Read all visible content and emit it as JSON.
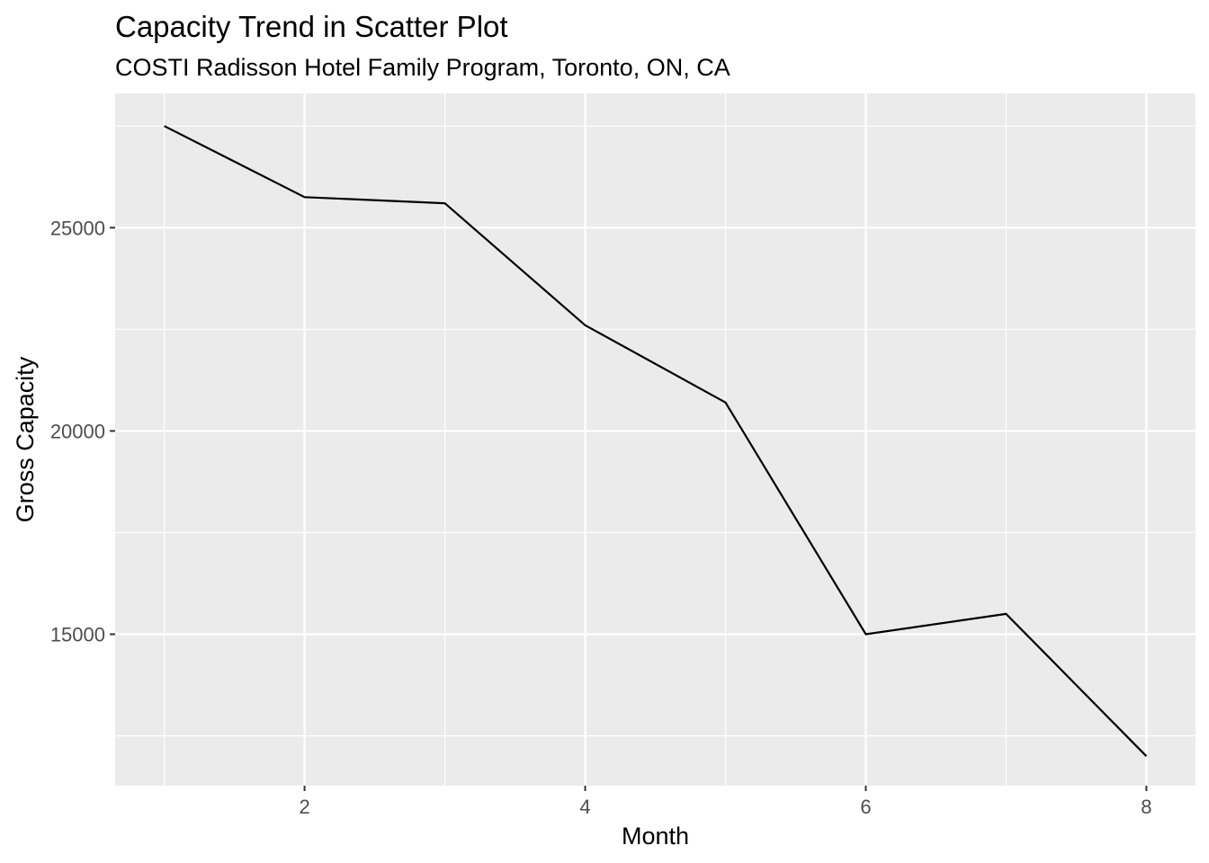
{
  "chart_data": {
    "type": "line",
    "title": "Capacity Trend in Scatter Plot",
    "subtitle": "COSTI Radisson Hotel Family Program, Toronto, ON, CA",
    "xlabel": "Month",
    "ylabel": "Gross Capacity",
    "x": [
      1,
      2,
      3,
      4,
      5,
      6,
      7,
      8
    ],
    "series": [
      {
        "values": [
          27500,
          25750,
          25600,
          22600,
          20700,
          15000,
          15500,
          12000
        ]
      }
    ],
    "xlim": [
      0.65,
      8.35
    ],
    "ylim": [
      11275,
      28300
    ],
    "x_ticks": [
      2,
      4,
      6,
      8
    ],
    "x_tick_labels": [
      "2",
      "4",
      "6",
      "8"
    ],
    "y_ticks": [
      15000,
      20000,
      25000
    ],
    "y_tick_labels": [
      "15000",
      "20000",
      "25000"
    ],
    "x_minor_ticks": [
      1,
      3,
      5,
      7
    ],
    "y_minor_ticks": [
      12500,
      17500,
      22500,
      27500
    ],
    "grid": true,
    "legend": "none",
    "colors": {
      "panel_background": "#ebebeb",
      "grid_line": "#ffffff",
      "series_line": "#000000",
      "tick_mark": "#333333",
      "tick_label": "#4d4d4d"
    }
  }
}
